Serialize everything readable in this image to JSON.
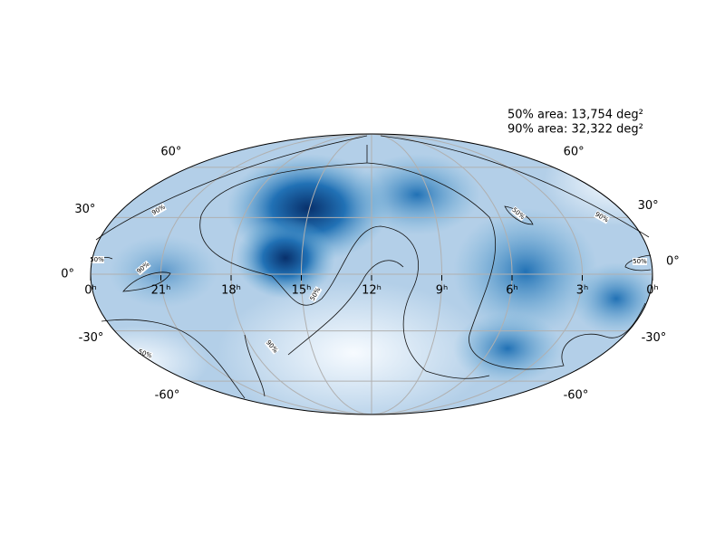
{
  "annotations": [
    "50% area: 13,754 deg²",
    "90% area: 32,322 deg²"
  ],
  "ra_ticks": [
    {
      "value": 24,
      "label": "0ʰ"
    },
    {
      "value": 21,
      "label": "21ʰ"
    },
    {
      "value": 18,
      "label": "18ʰ"
    },
    {
      "value": 15,
      "label": "15ʰ"
    },
    {
      "value": 12,
      "label": "12ʰ"
    },
    {
      "value": 9,
      "label": "9ʰ"
    },
    {
      "value": 6,
      "label": "6ʰ"
    },
    {
      "value": 3,
      "label": "3ʰ"
    },
    {
      "value": 0,
      "label": "0ʰ"
    }
  ],
  "dec_ticks_left": [
    {
      "value": 60,
      "label": "60°"
    },
    {
      "value": 30,
      "label": "30°"
    },
    {
      "value": 0,
      "label": "0°"
    },
    {
      "value": -30,
      "label": "-30°"
    },
    {
      "value": -60,
      "label": "-60°"
    }
  ],
  "dec_ticks_right": [
    {
      "value": 60,
      "label": "60°"
    },
    {
      "value": 30,
      "label": "30°"
    },
    {
      "value": 0,
      "label": "0°"
    },
    {
      "value": -30,
      "label": "-30°"
    },
    {
      "value": -60,
      "label": "-60°"
    }
  ],
  "contour_labels": [
    "90%",
    "50%",
    "90%",
    "50%",
    "90%",
    "50%",
    "50%",
    "90%",
    "50%"
  ]
}
